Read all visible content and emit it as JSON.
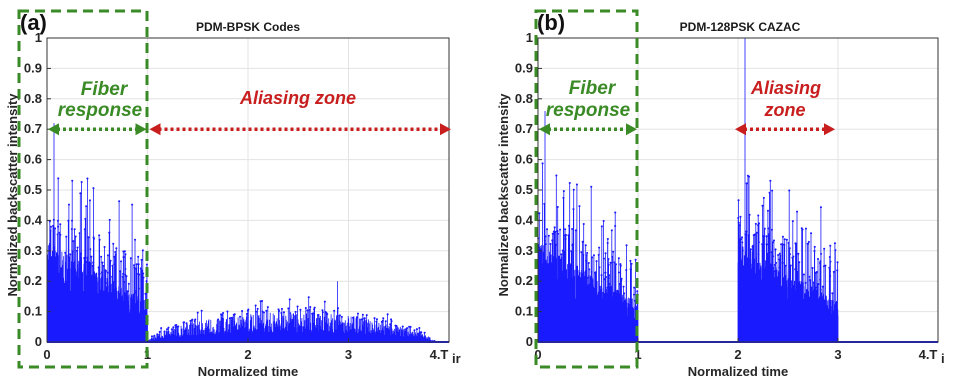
{
  "colors": {
    "signal": "#1a1aff",
    "fiber_green": "#3a8a26",
    "aliasing_red": "#c81e1e",
    "axis": "#333333",
    "grid": "#e3e3e3"
  },
  "icons": [
    "green-dashed-box",
    "green-dotted-double-arrow",
    "red-dotted-double-arrow"
  ],
  "chart_data": [
    {
      "type": "area",
      "panel_tag": "(a)",
      "title": "PDM-BPSK Codes",
      "xlabel": "Normalized time",
      "ylabel": "Normalized backscatter intensity",
      "xlim": [
        0,
        4
      ],
      "ylim": [
        0,
        1
      ],
      "x_ticks": [
        "0",
        "1",
        "2",
        "3",
        "4.T"
      ],
      "x_tick_subscript": "ir",
      "y_ticks": [
        "0",
        "0.1",
        "0.2",
        "0.3",
        "0.4",
        "0.5",
        "0.6",
        "0.7",
        "0.8",
        "0.9",
        "1"
      ],
      "grid": true,
      "segments": [
        {
          "x": [
            0,
            1
          ],
          "envelope_start": 0.6,
          "envelope_end": 0.45,
          "bulk_start": 0.3,
          "bulk_end": 0.12,
          "peak": 0.72
        },
        {
          "x": [
            1,
            4
          ],
          "shape": "hump",
          "rise_to": 0.15,
          "bulk_max": 0.09,
          "peak": 0.2
        }
      ],
      "annotations": {
        "fiber_label_line1": "Fiber",
        "fiber_label_line2": "response",
        "aliasing_label_line1": "Aliasing zone",
        "aliasing_label_line2": "",
        "fiber_arrow_span": [
          0,
          1
        ],
        "aliasing_arrow_span": [
          1,
          4
        ],
        "arrow_level": 0.7
      }
    },
    {
      "type": "area",
      "panel_tag": "(b)",
      "title": "PDM-128PSK CAZAC",
      "xlabel": "Normalized time",
      "ylabel": "Normalized backscatter intensity",
      "xlim": [
        0,
        4
      ],
      "ylim": [
        0,
        1
      ],
      "x_ticks": [
        "0",
        "1",
        "2",
        "3",
        "4.T"
      ],
      "x_tick_subscript": "i",
      "y_ticks": [
        "0",
        "0.1",
        "0.2",
        "0.3",
        "0.4",
        "0.5",
        "0.6",
        "0.7",
        "0.8",
        "0.9",
        "1"
      ],
      "grid": true,
      "segments": [
        {
          "x": [
            0,
            1
          ],
          "envelope_start": 0.6,
          "envelope_end": 0.45,
          "bulk_start": 0.3,
          "bulk_end": 0.12,
          "peak": 0.76
        },
        {
          "x": [
            2,
            3
          ],
          "envelope_start": 0.58,
          "envelope_end": 0.45,
          "bulk_start": 0.3,
          "bulk_end": 0.12,
          "peak": 1.0
        }
      ],
      "annotations": {
        "fiber_label_line1": "Fiber",
        "fiber_label_line2": "response",
        "aliasing_label_line1": "Aliasing",
        "aliasing_label_line2": "zone",
        "fiber_arrow_span": [
          0,
          1
        ],
        "aliasing_arrow_span": [
          1.95,
          2.95
        ],
        "arrow_level": 0.7
      }
    }
  ]
}
